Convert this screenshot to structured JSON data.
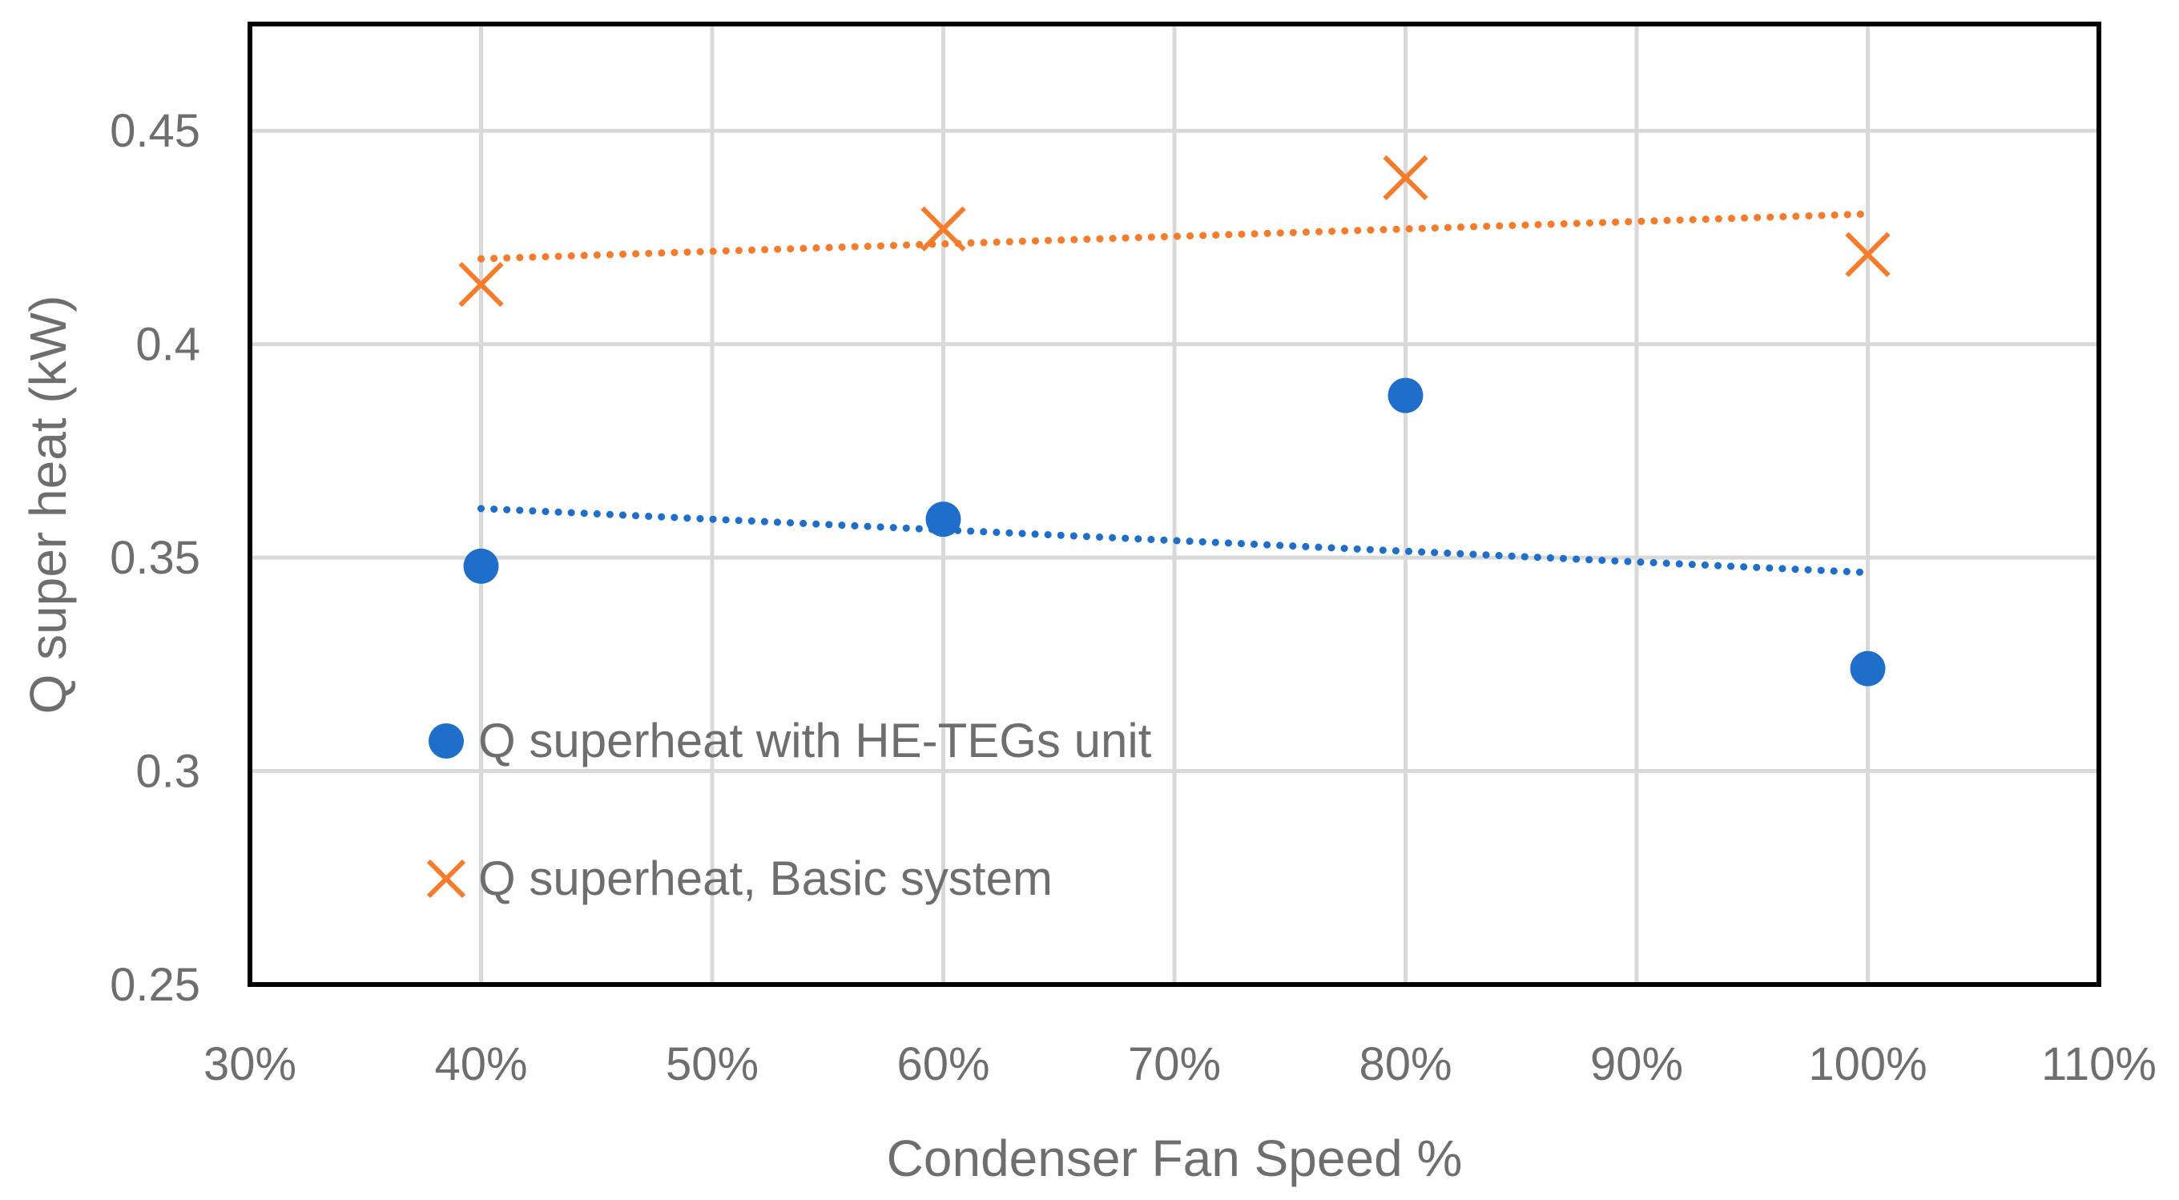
{
  "chart_data": {
    "type": "scatter",
    "title": "",
    "xlabel": "Condenser Fan Speed %",
    "ylabel": "Q super heat (kW)",
    "xlim": [
      0.3,
      1.1
    ],
    "ylim": [
      0.25,
      0.475
    ],
    "x_ticks": [
      0.3,
      0.4,
      0.5,
      0.6,
      0.7,
      0.8,
      0.9,
      1.0,
      1.1
    ],
    "x_tick_labels": [
      "30%",
      "40%",
      "50%",
      "60%",
      "70%",
      "80%",
      "90%",
      "100%",
      "110%"
    ],
    "y_ticks": [
      0.25,
      0.3,
      0.35,
      0.4,
      0.45
    ],
    "y_tick_labels": [
      "0.25",
      "0.3",
      "0.35",
      "0.4",
      "0.45"
    ],
    "grid": true,
    "legend_position": "bottom-left inside plot",
    "series": [
      {
        "name": "Q superheat with HE-TEGs unit",
        "marker": "circle",
        "color": "#1f6fca",
        "x": [
          0.4,
          0.6,
          0.8,
          1.0
        ],
        "values": [
          0.348,
          0.359,
          0.388,
          0.324
        ],
        "trendline": {
          "type": "linear",
          "x": [
            0.4,
            1.0
          ],
          "values": [
            0.3615,
            0.3465
          ]
        }
      },
      {
        "name": "Q superheat, Basic system",
        "marker": "x",
        "color": "#f47c2c",
        "x": [
          0.4,
          0.6,
          0.8,
          1.0
        ],
        "values": [
          0.414,
          0.427,
          0.439,
          0.421
        ],
        "trendline": {
          "type": "linear",
          "x": [
            0.4,
            1.0
          ],
          "values": [
            0.42,
            0.4305
          ]
        }
      }
    ]
  }
}
